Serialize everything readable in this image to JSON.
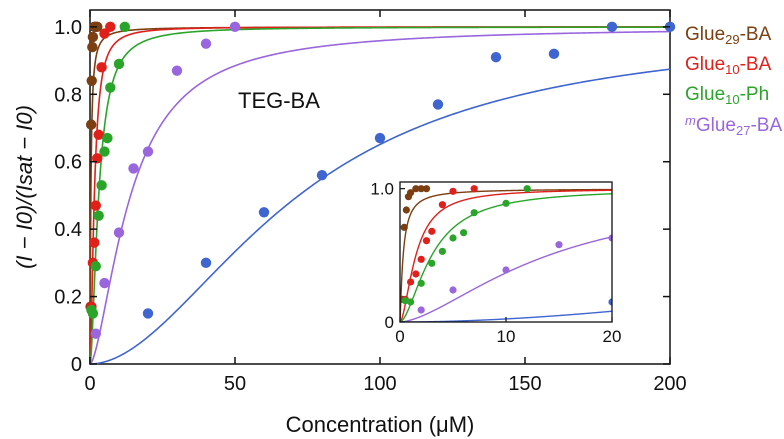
{
  "chart_data": {
    "type": "scatter",
    "title": "",
    "xlabel": "Concentration (μM)",
    "ylabel": "(I − I0)/(Isat − I0)",
    "xlim": [
      0,
      200
    ],
    "ylim": [
      0,
      1.05
    ],
    "xticks": [
      "0",
      "50",
      "100",
      "150",
      "200"
    ],
    "yticks": [
      "0",
      "0.2",
      "0.4",
      "0.6",
      "0.8",
      "1.0"
    ],
    "legend_position": "right",
    "annotations": [
      {
        "text": "TEG-BA"
      }
    ],
    "colors": {
      "brown": "#7b3f12",
      "red": "#e0201b",
      "green": "#2aa52a",
      "purple": "#9966dd",
      "blue": "#3f66d0"
    },
    "series": [
      {
        "name": "Glue29-BA",
        "legend_parts": [
          "Glue",
          "29",
          "-BA"
        ],
        "color": "#7b3f12",
        "fit_n": 1.2,
        "fit_k": 0.3,
        "x": [
          0.2,
          0.4,
          0.6,
          0.8,
          1.0,
          1.5,
          2.0,
          2.5
        ],
        "y": [
          0.17,
          0.71,
          0.84,
          0.94,
          0.97,
          1.0,
          1.0,
          1.0
        ]
      },
      {
        "name": "Glue10-BA",
        "legend_parts": [
          "Glue",
          "10",
          "-BA"
        ],
        "color": "#e0201b",
        "fit_n": 1.7,
        "fit_k": 1.5,
        "x": [
          0.5,
          1.0,
          1.5,
          2.0,
          2.5,
          3.0,
          4.0,
          5.0,
          7.0
        ],
        "y": [
          0.17,
          0.3,
          0.36,
          0.47,
          0.61,
          0.68,
          0.88,
          0.98,
          1.0
        ]
      },
      {
        "name": "Glue10-Ph",
        "legend_parts": [
          "Glue",
          "10",
          "-Ph"
        ],
        "color": "#2aa52a",
        "fit_n": 1.7,
        "fit_k": 3.0,
        "x": [
          0.5,
          1.0,
          2.0,
          3.0,
          4.0,
          5.0,
          6.0,
          7.0,
          10.0,
          12.0
        ],
        "y": [
          0.16,
          0.15,
          0.29,
          0.44,
          0.53,
          0.63,
          0.67,
          0.82,
          0.89,
          1.0
        ]
      },
      {
        "name": "mGlue27-BA",
        "legend_parts": [
          "m",
          "Glue",
          "27",
          "-BA"
        ],
        "color": "#9966dd",
        "fit_n": 1.6,
        "fit_k": 14.0,
        "x": [
          2.0,
          5.0,
          10.0,
          15.0,
          20.0,
          30.0,
          40.0,
          50.0
        ],
        "y": [
          0.09,
          0.24,
          0.39,
          0.58,
          0.63,
          0.87,
          0.95,
          1.0
        ]
      },
      {
        "name": "TEG-BA",
        "legend_parts": [
          "TEG-BA"
        ],
        "color": "#3f66d0",
        "fit_n": 1.9,
        "fit_k": 72.0,
        "x": [
          20,
          40,
          60,
          80,
          100,
          120,
          140,
          160,
          180,
          200
        ],
        "y": [
          0.15,
          0.3,
          0.45,
          0.56,
          0.67,
          0.77,
          0.91,
          0.92,
          1.0,
          1.0
        ]
      }
    ],
    "inset": {
      "xlim": [
        0,
        20
      ],
      "ylim": [
        0,
        1.05
      ],
      "xticks": [
        "0",
        "10",
        "20"
      ],
      "yticks": [
        "0",
        "1.0"
      ]
    }
  }
}
